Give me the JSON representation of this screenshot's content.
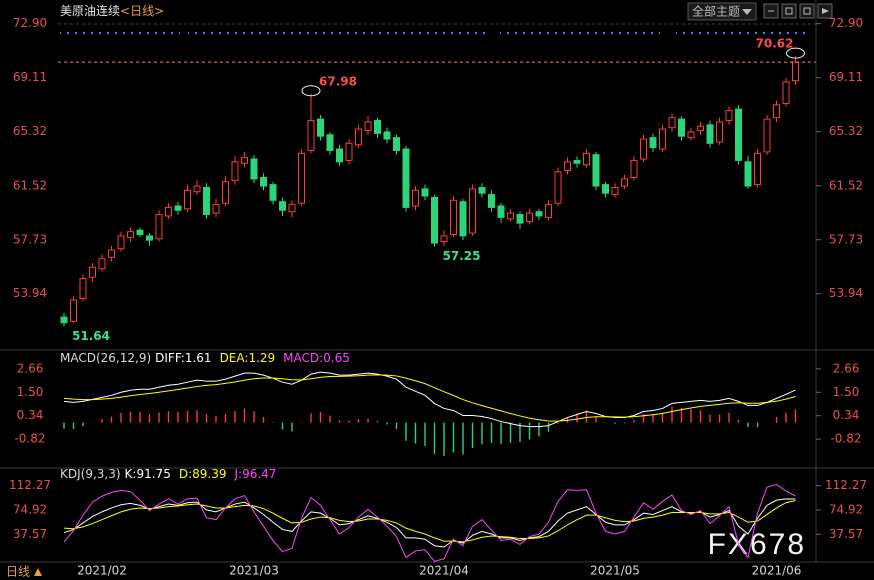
{
  "toolbar": {
    "theme_button": "全部主题"
  },
  "footer": {
    "period": "日线"
  },
  "watermark": "FX678",
  "chart_data": [
    {
      "type": "candlestick",
      "title": "美原油连续",
      "period": "<日线>",
      "up_color": "#ff3b3b",
      "down_color": "#2ed47a",
      "price_line_color": "#ff8c3a",
      "ylim": [
        50.2,
        73.3
      ],
      "yticks": [
        {
          "value": 72.9,
          "label": "72.90"
        },
        69.11,
        65.32,
        61.52,
        57.73,
        53.94
      ],
      "categories": [
        null,
        null,
        null,
        null,
        "2021/02",
        null,
        null,
        null,
        null,
        null,
        null,
        null,
        null,
        null,
        null,
        null,
        null,
        null,
        null,
        null,
        "2021/03",
        null,
        null,
        null,
        null,
        null,
        null,
        null,
        null,
        null,
        null,
        null,
        null,
        null,
        null,
        null,
        null,
        null,
        null,
        null,
        "2021/04",
        null,
        null,
        null,
        null,
        null,
        null,
        null,
        null,
        null,
        null,
        null,
        null,
        null,
        null,
        null,
        null,
        null,
        "2021/05",
        null,
        null,
        null,
        null,
        null,
        null,
        null,
        null,
        null,
        null,
        null,
        null,
        null,
        null,
        null,
        null,
        "2021/06",
        null,
        null
      ],
      "candles": [
        [
          52.3,
          52.6,
          51.64,
          51.9
        ],
        [
          52.0,
          53.8,
          51.9,
          53.5
        ],
        [
          53.6,
          55.3,
          53.4,
          55.0
        ],
        [
          55.1,
          56.1,
          54.8,
          55.8
        ],
        [
          55.7,
          56.7,
          55.5,
          56.4
        ],
        [
          56.5,
          57.3,
          56.2,
          57.0
        ],
        [
          57.1,
          58.3,
          56.9,
          58.0
        ],
        [
          57.9,
          58.6,
          57.6,
          58.3
        ],
        [
          58.4,
          58.6,
          57.9,
          58.1
        ],
        [
          58.0,
          58.2,
          57.3,
          57.7
        ],
        [
          57.8,
          59.8,
          57.6,
          59.5
        ],
        [
          59.4,
          60.3,
          59.2,
          60.0
        ],
        [
          60.1,
          60.4,
          59.5,
          59.8
        ],
        [
          59.9,
          61.6,
          59.7,
          61.2
        ],
        [
          61.1,
          61.9,
          60.9,
          61.5
        ],
        [
          61.4,
          61.7,
          59.2,
          59.5
        ],
        [
          59.6,
          60.6,
          59.3,
          60.2
        ],
        [
          60.3,
          62.2,
          60.1,
          61.8
        ],
        [
          61.9,
          63.6,
          61.6,
          63.2
        ],
        [
          63.1,
          63.9,
          62.8,
          63.5
        ],
        [
          63.4,
          63.7,
          61.7,
          62.0
        ],
        [
          62.1,
          62.4,
          61.2,
          61.5
        ],
        [
          61.6,
          61.8,
          60.2,
          60.5
        ],
        [
          60.4,
          60.7,
          59.4,
          59.8
        ],
        [
          59.7,
          60.5,
          59.3,
          60.2
        ],
        [
          60.3,
          64.1,
          60.1,
          63.8
        ],
        [
          64.0,
          67.98,
          63.8,
          66.1
        ],
        [
          66.2,
          66.5,
          64.7,
          65.0
        ],
        [
          65.1,
          65.3,
          63.7,
          64.0
        ],
        [
          64.1,
          64.4,
          62.9,
          63.2
        ],
        [
          63.3,
          64.8,
          63.0,
          64.5
        ],
        [
          64.4,
          65.8,
          64.2,
          65.5
        ],
        [
          65.4,
          66.4,
          65.1,
          66.0
        ],
        [
          66.1,
          66.3,
          64.9,
          65.2
        ],
        [
          65.3,
          65.6,
          64.5,
          64.8
        ],
        [
          64.9,
          65.1,
          63.7,
          64.0
        ],
        [
          64.1,
          64.3,
          59.7,
          60.0
        ],
        [
          60.1,
          61.5,
          59.8,
          61.2
        ],
        [
          61.3,
          61.6,
          60.5,
          60.8
        ],
        [
          60.7,
          60.9,
          57.25,
          57.5
        ],
        [
          57.6,
          58.4,
          57.3,
          58.0
        ],
        [
          58.1,
          60.8,
          57.9,
          60.5
        ],
        [
          60.4,
          60.6,
          57.7,
          58.0
        ],
        [
          58.2,
          61.6,
          58.0,
          61.3
        ],
        [
          61.4,
          61.7,
          60.7,
          61.0
        ],
        [
          60.9,
          61.2,
          59.7,
          60.0
        ],
        [
          60.1,
          60.3,
          58.9,
          59.3
        ],
        [
          59.2,
          59.9,
          59.0,
          59.6
        ],
        [
          59.5,
          59.7,
          58.5,
          58.9
        ],
        [
          59.0,
          59.9,
          58.8,
          59.6
        ],
        [
          59.7,
          59.9,
          59.1,
          59.4
        ],
        [
          59.3,
          60.5,
          59.1,
          60.2
        ],
        [
          60.3,
          62.8,
          60.1,
          62.5
        ],
        [
          62.6,
          63.5,
          62.3,
          63.2
        ],
        [
          63.3,
          63.6,
          62.8,
          63.1
        ],
        [
          63.0,
          64.1,
          62.8,
          63.8
        ],
        [
          63.7,
          63.9,
          61.2,
          61.5
        ],
        [
          61.6,
          61.8,
          60.7,
          61.0
        ],
        [
          60.9,
          61.7,
          60.7,
          61.4
        ],
        [
          61.5,
          62.3,
          61.3,
          62.0
        ],
        [
          62.1,
          63.6,
          61.9,
          63.3
        ],
        [
          63.4,
          65.1,
          63.2,
          64.8
        ],
        [
          64.9,
          65.2,
          63.9,
          64.2
        ],
        [
          64.1,
          65.8,
          63.9,
          65.5
        ],
        [
          65.6,
          66.6,
          65.3,
          66.3
        ],
        [
          66.2,
          66.4,
          64.7,
          65.0
        ],
        [
          64.9,
          65.6,
          64.7,
          65.3
        ],
        [
          65.4,
          66.0,
          65.1,
          65.7
        ],
        [
          65.8,
          66.1,
          64.2,
          64.5
        ],
        [
          64.6,
          66.3,
          64.4,
          66.0
        ],
        [
          66.1,
          67.1,
          65.8,
          66.8
        ],
        [
          66.9,
          67.2,
          63.0,
          63.3
        ],
        [
          63.2,
          63.6,
          61.3,
          61.5
        ],
        [
          61.6,
          64.1,
          61.4,
          63.8
        ],
        [
          63.9,
          66.5,
          63.7,
          66.2
        ],
        [
          66.3,
          67.5,
          66.0,
          67.2
        ],
        [
          67.3,
          69.1,
          67.1,
          68.8
        ],
        [
          68.9,
          70.62,
          68.6,
          70.2
        ]
      ]
    },
    {
      "type": "macd",
      "title": "MACD(26,12,9)",
      "up_color": "#ff3b3b",
      "down_color": "#2ed47a",
      "ylim": [
        -2.1,
        3.0
      ],
      "yticks": [
        2.66,
        {
          "value": 1.5,
          "label": "1.50"
        },
        0.34,
        -0.82
      ],
      "series": [
        {
          "name": "DIFF:",
          "color": "#ffffff",
          "values": [
            1.05,
            1.0,
            1.05,
            1.15,
            1.25,
            1.35,
            1.5,
            1.6,
            1.65,
            1.65,
            1.75,
            1.85,
            1.9,
            2.0,
            2.1,
            2.05,
            2.05,
            2.15,
            2.3,
            2.45,
            2.45,
            2.35,
            2.2,
            2.0,
            1.9,
            2.1,
            2.4,
            2.5,
            2.45,
            2.35,
            2.35,
            2.4,
            2.45,
            2.4,
            2.3,
            2.15,
            1.75,
            1.55,
            1.35,
            0.95,
            0.7,
            0.6,
            0.35,
            0.35,
            0.3,
            0.2,
            0.05,
            -0.05,
            -0.15,
            -0.2,
            -0.2,
            -0.15,
            0.05,
            0.25,
            0.4,
            0.55,
            0.45,
            0.3,
            0.25,
            0.25,
            0.35,
            0.55,
            0.6,
            0.7,
            0.95,
            1.0,
            1.05,
            1.1,
            1.05,
            1.1,
            1.2,
            1.05,
            0.85,
            0.85,
            1.0,
            1.2,
            1.4,
            1.61
          ]
        },
        {
          "name": "DEA:",
          "color": "#ffff00",
          "values": [
            1.2,
            1.16,
            1.14,
            1.14,
            1.16,
            1.2,
            1.26,
            1.33,
            1.39,
            1.44,
            1.5,
            1.57,
            1.64,
            1.71,
            1.79,
            1.84,
            1.88,
            1.94,
            2.01,
            2.1,
            2.17,
            2.21,
            2.21,
            2.17,
            2.12,
            2.11,
            2.17,
            2.24,
            2.28,
            2.29,
            2.3,
            2.32,
            2.35,
            2.36,
            2.35,
            2.31,
            2.2,
            2.07,
            1.93,
            1.73,
            1.53,
            1.34,
            1.14,
            0.98,
            0.84,
            0.71,
            0.58,
            0.45,
            0.33,
            0.22,
            0.14,
            0.08,
            0.07,
            0.11,
            0.17,
            0.25,
            0.29,
            0.29,
            0.28,
            0.27,
            0.29,
            0.34,
            0.39,
            0.45,
            0.55,
            0.64,
            0.72,
            0.8,
            0.85,
            0.9,
            0.96,
            0.98,
            0.96,
            0.96,
            1.0,
            1.06,
            1.16,
            1.29
          ]
        },
        {
          "name": "MACD:",
          "color": "#ff44ff",
          "style": "bars",
          "values": [
            -0.3,
            -0.32,
            -0.18,
            0.02,
            0.18,
            0.3,
            0.48,
            0.54,
            0.52,
            0.42,
            0.5,
            0.56,
            0.52,
            0.58,
            0.62,
            0.42,
            0.34,
            0.42,
            0.58,
            0.7,
            0.56,
            0.28,
            -0.02,
            -0.34,
            -0.44,
            -0.02,
            0.46,
            0.52,
            0.34,
            0.12,
            0.1,
            0.16,
            0.2,
            0.08,
            -0.1,
            -0.32,
            -0.9,
            -1.04,
            -1.16,
            -1.56,
            -1.66,
            -1.48,
            -1.58,
            -1.26,
            -1.08,
            -1.02,
            -1.06,
            -1.0,
            -0.96,
            -0.84,
            -0.68,
            -0.46,
            -0.04,
            0.28,
            0.46,
            0.6,
            0.32,
            0.02,
            -0.06,
            -0.04,
            0.12,
            0.42,
            0.42,
            0.5,
            0.8,
            0.72,
            0.66,
            0.6,
            0.4,
            0.4,
            0.48,
            0.14,
            -0.22,
            -0.22,
            0,
            0.28,
            0.48,
            0.65
          ]
        }
      ]
    },
    {
      "type": "line",
      "title": "KDJ(9,3,3)",
      "ylim": [
        -5,
        124
      ],
      "yticks": [
        112.27,
        74.92,
        37.57
      ],
      "series": [
        {
          "name": "K:",
          "color": "#ffffff",
          "values": [
            40,
            45,
            55,
            65,
            72,
            78,
            83,
            85,
            82,
            76,
            80,
            84,
            82,
            86,
            87,
            75,
            72,
            78,
            84,
            87,
            78,
            68,
            56,
            45,
            42,
            58,
            72,
            70,
            62,
            52,
            54,
            60,
            66,
            62,
            56,
            48,
            32,
            32,
            30,
            20,
            18,
            28,
            24,
            36,
            42,
            38,
            32,
            32,
            28,
            32,
            34,
            42,
            58,
            70,
            75,
            80,
            68,
            56,
            52,
            52,
            60,
            70,
            68,
            74,
            80,
            72,
            70,
            72,
            64,
            68,
            74,
            50,
            38,
            62,
            82,
            90,
            92,
            91.75
          ]
        },
        {
          "name": "D:",
          "color": "#ffff00",
          "values": [
            47,
            46,
            49,
            54,
            60,
            66,
            72,
            76,
            78,
            77,
            78,
            80,
            81,
            83,
            84,
            81,
            78,
            78,
            80,
            82,
            81,
            77,
            70,
            62,
            55,
            56,
            61,
            64,
            63,
            59,
            57,
            58,
            61,
            61,
            59,
            55,
            47,
            42,
            38,
            32,
            27,
            27,
            26,
            29,
            33,
            35,
            34,
            33,
            31,
            31,
            32,
            35,
            43,
            52,
            60,
            67,
            67,
            63,
            59,
            57,
            58,
            62,
            64,
            67,
            71,
            71,
            71,
            71,
            69,
            69,
            71,
            64,
            56,
            58,
            68,
            78,
            86,
            89.39
          ]
        },
        {
          "name": "J:",
          "color": "#ff44ff",
          "values": [
            26,
            43,
            67,
            87,
            96,
            102,
            105,
            103,
            90,
            74,
            84,
            92,
            84,
            92,
            93,
            63,
            60,
            78,
            92,
            97,
            72,
            50,
            28,
            11,
            16,
            62,
            94,
            82,
            60,
            38,
            48,
            64,
            76,
            64,
            50,
            34,
            2,
            12,
            14,
            -4,
            0,
            30,
            20,
            50,
            60,
            44,
            28,
            30,
            22,
            34,
            38,
            56,
            88,
            106,
            105,
            106,
            70,
            42,
            38,
            42,
            64,
            86,
            76,
            88,
            98,
            74,
            68,
            74,
            54,
            66,
            80,
            22,
            2,
            70,
            110,
            114,
            104,
            96.47
          ]
        }
      ]
    }
  ]
}
